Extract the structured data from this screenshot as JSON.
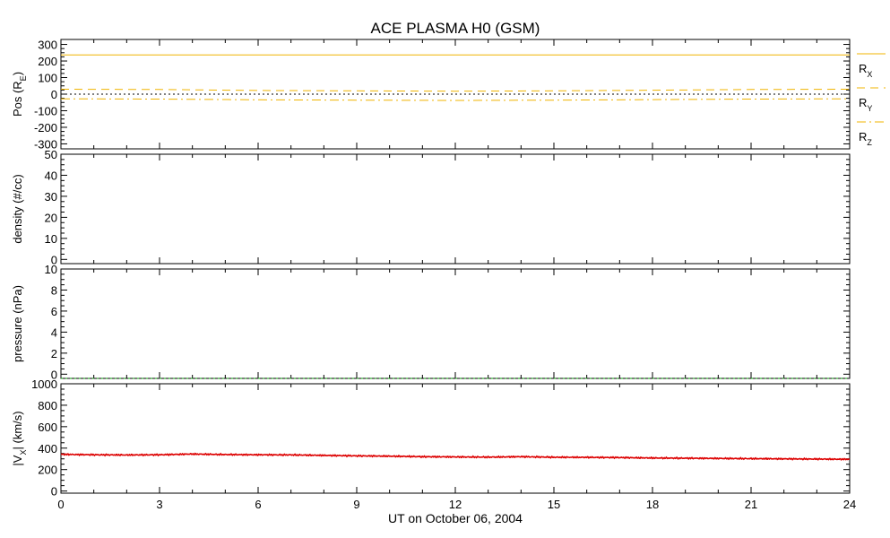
{
  "title": "ACE PLASMA H0 (GSM)",
  "x_axis": {
    "label": "UT on October 06, 2004",
    "min": 0,
    "max": 24,
    "ticks": [
      "0",
      "3",
      "6",
      "9",
      "12",
      "15",
      "18",
      "21",
      "24"
    ]
  },
  "colors": {
    "position": "#f0b400",
    "density": "#000000",
    "pressure": "#00a000",
    "velocity": "#dd0000",
    "zero_line": "#000000"
  },
  "chart_data": [
    {
      "type": "line",
      "panel": "position",
      "ylabel": "Pos (R",
      "ylabel_sub": "E",
      "ylabel_end": ")",
      "ylim": [
        -330,
        330
      ],
      "yticks": [
        "-300",
        "-200",
        "-100",
        "0",
        "100",
        "200",
        "300"
      ],
      "legend_placement": "right",
      "x": [
        0,
        3,
        6,
        9,
        12,
        15,
        18,
        21,
        24
      ],
      "series": [
        {
          "name": "R",
          "sub": "X",
          "style": "solid",
          "values": [
            237,
            237,
            237,
            237,
            237,
            237,
            237,
            237,
            237
          ]
        },
        {
          "name": "R",
          "sub": "Y",
          "style": "dashed",
          "values": [
            30,
            28,
            22,
            20,
            18,
            20,
            24,
            28,
            30
          ]
        },
        {
          "name": "R",
          "sub": "Z",
          "style": "dashdot",
          "values": [
            -28,
            -30,
            -34,
            -36,
            -38,
            -36,
            -33,
            -30,
            -28
          ]
        }
      ]
    },
    {
      "type": "line",
      "panel": "density",
      "ylabel": "density (#/cc)",
      "ylim": [
        -2,
        50
      ],
      "yticks": [
        "0",
        "10",
        "20",
        "30",
        "40",
        "50"
      ],
      "x": [],
      "series": []
    },
    {
      "type": "line",
      "panel": "pressure",
      "ylabel": "pressure (nPa)",
      "ylim": [
        -0.4,
        10
      ],
      "yticks": [
        "0",
        "2",
        "4",
        "6",
        "8",
        "10"
      ],
      "x": [
        0,
        24
      ],
      "series": [
        {
          "style": "dotted",
          "values": [
            -0.4,
            -0.4
          ]
        }
      ]
    },
    {
      "type": "line",
      "panel": "velocity",
      "ylabel": "|V",
      "ylabel_sub": "X",
      "ylabel_end": "| (km/s)",
      "ylim": [
        -20,
        1000
      ],
      "yticks": [
        "0",
        "200",
        "400",
        "600",
        "800",
        "1000"
      ],
      "x": [
        0,
        1,
        2,
        3,
        4,
        5,
        6,
        7,
        8,
        9,
        10,
        11,
        12,
        13,
        14,
        15,
        16,
        17,
        18,
        19,
        20,
        21,
        22,
        23,
        24
      ],
      "series": [
        {
          "style": "solid",
          "values": [
            342,
            338,
            336,
            338,
            345,
            340,
            338,
            337,
            332,
            328,
            325,
            320,
            318,
            316,
            320,
            315,
            314,
            312,
            308,
            306,
            304,
            302,
            300,
            298,
            296
          ]
        }
      ]
    }
  ]
}
